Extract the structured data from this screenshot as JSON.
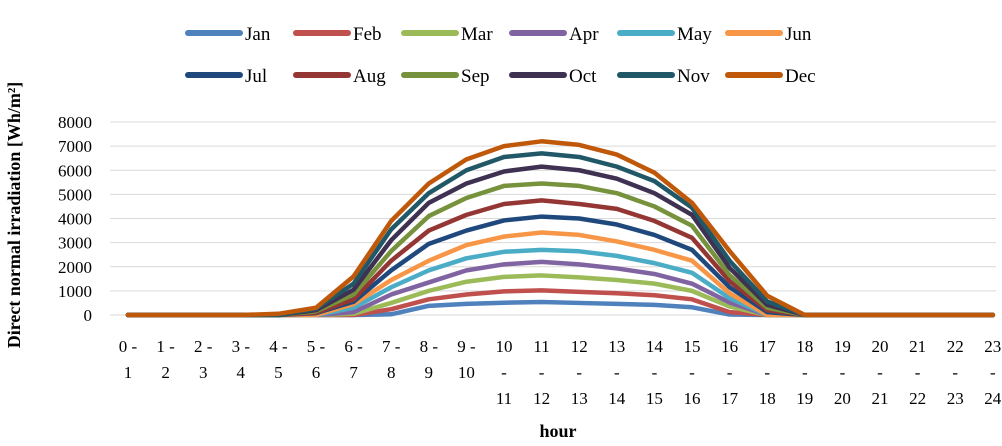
{
  "chart_data": {
    "type": "line",
    "xlabel": "hour",
    "ylabel": "Direct normal irradiation [Wh/m²]",
    "ylim": [
      0,
      8000
    ],
    "yticks": [
      0,
      1000,
      2000,
      3000,
      4000,
      5000,
      6000,
      7000,
      8000
    ],
    "grid": "horizontal",
    "legend_position": "top",
    "categories": [
      [
        "0 -",
        "1"
      ],
      [
        "1 -",
        "2"
      ],
      [
        "2 -",
        "3"
      ],
      [
        "3 -",
        "4"
      ],
      [
        "4 -",
        "5"
      ],
      [
        "5 -",
        "6"
      ],
      [
        "6 -",
        "7"
      ],
      [
        "7 -",
        "8"
      ],
      [
        "8 -",
        "9"
      ],
      [
        "9 -",
        "10"
      ],
      [
        "10",
        "-",
        "11"
      ],
      [
        "11",
        "-",
        "12"
      ],
      [
        "12",
        "-",
        "13"
      ],
      [
        "13",
        "-",
        "14"
      ],
      [
        "14",
        "-",
        "15"
      ],
      [
        "15",
        "-",
        "16"
      ],
      [
        "16",
        "-",
        "17"
      ],
      [
        "17",
        "-",
        "18"
      ],
      [
        "18",
        "-",
        "19"
      ],
      [
        "19",
        "-",
        "20"
      ],
      [
        "20",
        "-",
        "21"
      ],
      [
        "21",
        "-",
        "22"
      ],
      [
        "22",
        "-",
        "23"
      ],
      [
        "23",
        "-",
        "24"
      ]
    ],
    "series": [
      {
        "name": "Jan",
        "color": "#4F81BD",
        "values": [
          0,
          0,
          0,
          0,
          0,
          0,
          0,
          30,
          380,
          460,
          510,
          540,
          500,
          460,
          420,
          320,
          20,
          0,
          0,
          0,
          0,
          0,
          0,
          0
        ]
      },
      {
        "name": "Feb",
        "color": "#C0504D",
        "values": [
          0,
          0,
          0,
          0,
          0,
          0,
          0,
          240,
          650,
          850,
          980,
          1020,
          960,
          900,
          820,
          650,
          120,
          0,
          0,
          0,
          0,
          0,
          0,
          0
        ]
      },
      {
        "name": "Mar",
        "color": "#9BBB59",
        "values": [
          0,
          0,
          0,
          0,
          0,
          0,
          50,
          500,
          1000,
          1380,
          1580,
          1640,
          1560,
          1450,
          1300,
          1000,
          350,
          0,
          0,
          0,
          0,
          0,
          0,
          0
        ]
      },
      {
        "name": "Apr",
        "color": "#8064A2",
        "values": [
          0,
          0,
          0,
          0,
          0,
          0,
          120,
          850,
          1350,
          1850,
          2100,
          2200,
          2100,
          1930,
          1700,
          1300,
          520,
          0,
          0,
          0,
          0,
          0,
          0,
          0
        ]
      },
      {
        "name": "May",
        "color": "#4BACC6",
        "values": [
          0,
          0,
          0,
          0,
          0,
          0,
          300,
          1150,
          1850,
          2350,
          2620,
          2700,
          2640,
          2450,
          2150,
          1750,
          700,
          0,
          0,
          0,
          0,
          0,
          0,
          0
        ]
      },
      {
        "name": "Jun",
        "color": "#F79646",
        "values": [
          0,
          0,
          0,
          0,
          0,
          0,
          450,
          1450,
          2250,
          2900,
          3250,
          3420,
          3320,
          3050,
          2700,
          2250,
          900,
          0,
          0,
          0,
          0,
          0,
          0,
          0
        ]
      },
      {
        "name": "Jul",
        "color": "#1F497D",
        "values": [
          0,
          0,
          0,
          0,
          0,
          80,
          550,
          1850,
          2950,
          3500,
          3920,
          4080,
          4000,
          3750,
          3320,
          2700,
          1150,
          120,
          0,
          0,
          0,
          0,
          0,
          0
        ]
      },
      {
        "name": "Aug",
        "color": "#943634",
        "values": [
          0,
          0,
          0,
          0,
          0,
          100,
          650,
          2250,
          3500,
          4150,
          4600,
          4750,
          4600,
          4400,
          3900,
          3200,
          1400,
          200,
          0,
          0,
          0,
          0,
          0,
          0
        ]
      },
      {
        "name": "Sep",
        "color": "#76923C",
        "values": [
          0,
          0,
          0,
          0,
          0,
          150,
          850,
          2650,
          4100,
          4850,
          5350,
          5450,
          5350,
          5050,
          4500,
          3700,
          1650,
          300,
          0,
          0,
          0,
          0,
          0,
          0
        ]
      },
      {
        "name": "Oct",
        "color": "#3F3151",
        "values": [
          0,
          0,
          0,
          0,
          0,
          200,
          1050,
          3100,
          4650,
          5450,
          5950,
          6150,
          6000,
          5650,
          5050,
          4150,
          1950,
          420,
          0,
          0,
          0,
          0,
          0,
          0
        ]
      },
      {
        "name": "Nov",
        "color": "#215868",
        "values": [
          0,
          0,
          0,
          0,
          0,
          260,
          1300,
          3550,
          5050,
          6000,
          6550,
          6700,
          6550,
          6150,
          5550,
          4450,
          2250,
          560,
          0,
          0,
          0,
          0,
          0,
          0
        ]
      },
      {
        "name": "Dec",
        "color": "#C0580A",
        "values": [
          0,
          0,
          0,
          0,
          50,
          300,
          1600,
          3900,
          5450,
          6450,
          7000,
          7200,
          7050,
          6650,
          5900,
          4650,
          2650,
          800,
          0,
          0,
          0,
          0,
          0,
          0
        ]
      }
    ]
  }
}
